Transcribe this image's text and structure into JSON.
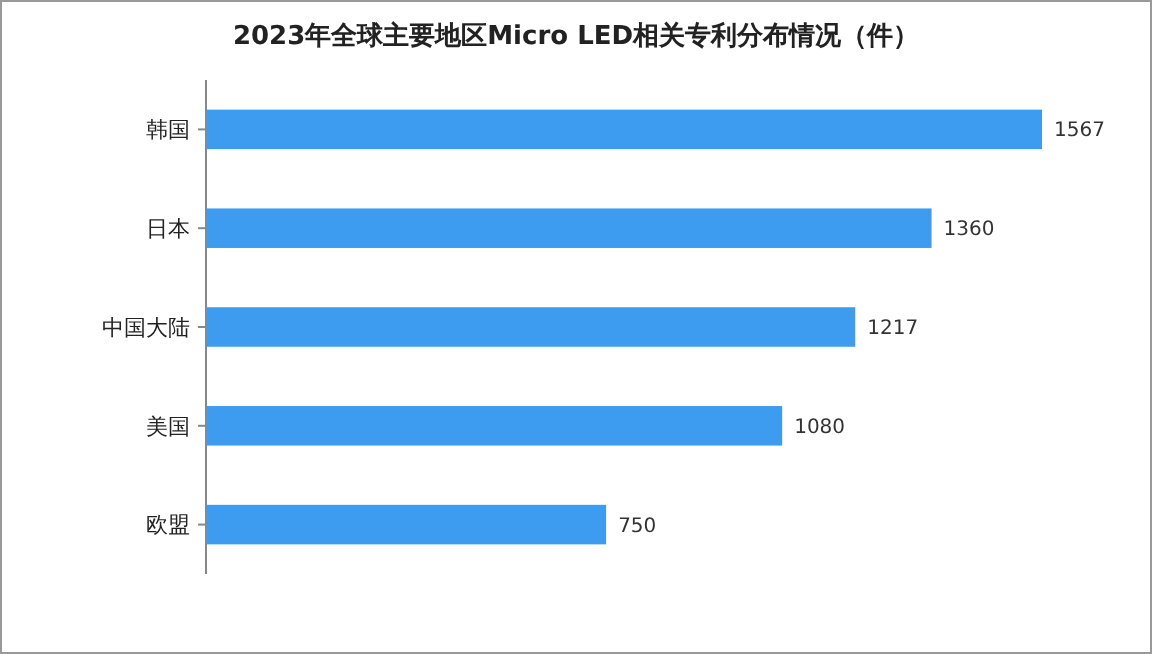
{
  "chart_data": {
    "type": "bar",
    "orientation": "horizontal",
    "title": "2023年全球主要地区Micro LED相关专利分布情况（件）",
    "categories": [
      "韩国",
      "日本",
      "中国大陆",
      "美国",
      "欧盟"
    ],
    "values": [
      1567,
      1360,
      1217,
      1080,
      750
    ],
    "color": "#3d9cf0",
    "data_labels": true
  }
}
